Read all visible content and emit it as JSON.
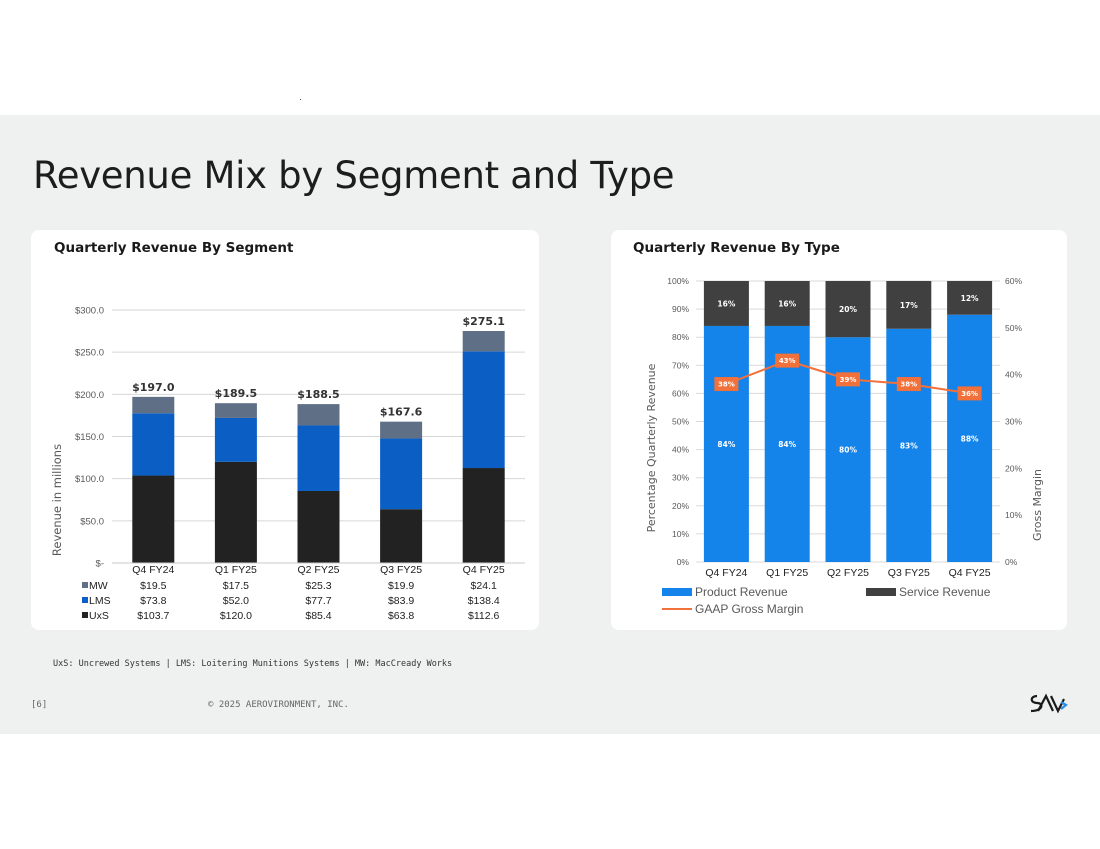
{
  "page": {
    "title": "Revenue Mix by Segment and Type",
    "footnote": "UxS: Uncrewed Systems | LMS: Loitering Munitions Systems | MW: MacCready Works",
    "page_number": "[6]",
    "copyright": "© 2025 AEROVIRONMENT, INC."
  },
  "colors": {
    "uxs": "#222222",
    "lms": "#0a5ec4",
    "mw": "#5e6f86",
    "product": "#1483ea",
    "service": "#404040",
    "margin": "#f2703a"
  },
  "chart_data": [
    {
      "type": "bar",
      "stacked": true,
      "title": "Quarterly Revenue By Segment",
      "ylabel": "Revenue in millions",
      "ylim": [
        0,
        300
      ],
      "yticks": [
        "$-",
        "$50.0",
        "$100.0",
        "$150.0",
        "$200.0",
        "$250.0",
        "$300.0"
      ],
      "categories": [
        "Q4 FY24",
        "Q1 FY25",
        "Q2 FY25",
        "Q3 FY25",
        "Q4 FY25"
      ],
      "totals": [
        "$197.0",
        "$189.5",
        "$188.5",
        "$167.6",
        "$275.1"
      ],
      "series": [
        {
          "name": "UxS",
          "values": [
            103.7,
            120.0,
            85.4,
            63.8,
            112.6
          ],
          "labels": [
            "$103.7",
            "$120.0",
            "$85.4",
            "$63.8",
            "$112.6"
          ]
        },
        {
          "name": "LMS",
          "values": [
            73.8,
            52.0,
            77.7,
            83.9,
            138.4
          ],
          "labels": [
            "$73.8",
            "$52.0",
            "$77.7",
            "$83.9",
            "$138.4"
          ]
        },
        {
          "name": "MW",
          "values": [
            19.5,
            17.5,
            25.3,
            19.9,
            24.1
          ],
          "labels": [
            "$19.5",
            "$17.5",
            "$25.3",
            "$19.9",
            "$24.1"
          ]
        }
      ]
    },
    {
      "type": "bar",
      "stacked": true,
      "title": "Quarterly Revenue By Type",
      "ylabel": "Percentage Quarterly  Revenue",
      "y2label": "Gross Margin",
      "ylim": [
        0,
        100
      ],
      "y2lim": [
        0,
        60
      ],
      "yticks": [
        "0%",
        "10%",
        "20%",
        "30%",
        "40%",
        "50%",
        "60%",
        "70%",
        "80%",
        "90%",
        "100%"
      ],
      "y2ticks": [
        "0%",
        "10%",
        "20%",
        "30%",
        "40%",
        "50%",
        "60%"
      ],
      "categories": [
        "Q4 FY24",
        "Q1 FY25",
        "Q2 FY25",
        "Q3 FY25",
        "Q4 FY25"
      ],
      "series": [
        {
          "name": "Product Revenue",
          "values": [
            84,
            84,
            80,
            83,
            88
          ],
          "labels": [
            "84%",
            "84%",
            "80%",
            "83%",
            "88%"
          ]
        },
        {
          "name": "Service Revenue",
          "values": [
            16,
            16,
            20,
            17,
            12
          ],
          "labels": [
            "16%",
            "16%",
            "20%",
            "17%",
            "12%"
          ]
        },
        {
          "name": "GAAP Gross Margin",
          "type": "line",
          "axis": "y2",
          "values": [
            38,
            43,
            39,
            38,
            36
          ],
          "labels": [
            "38%",
            "43%",
            "39%",
            "38%",
            "36%"
          ]
        }
      ]
    }
  ]
}
